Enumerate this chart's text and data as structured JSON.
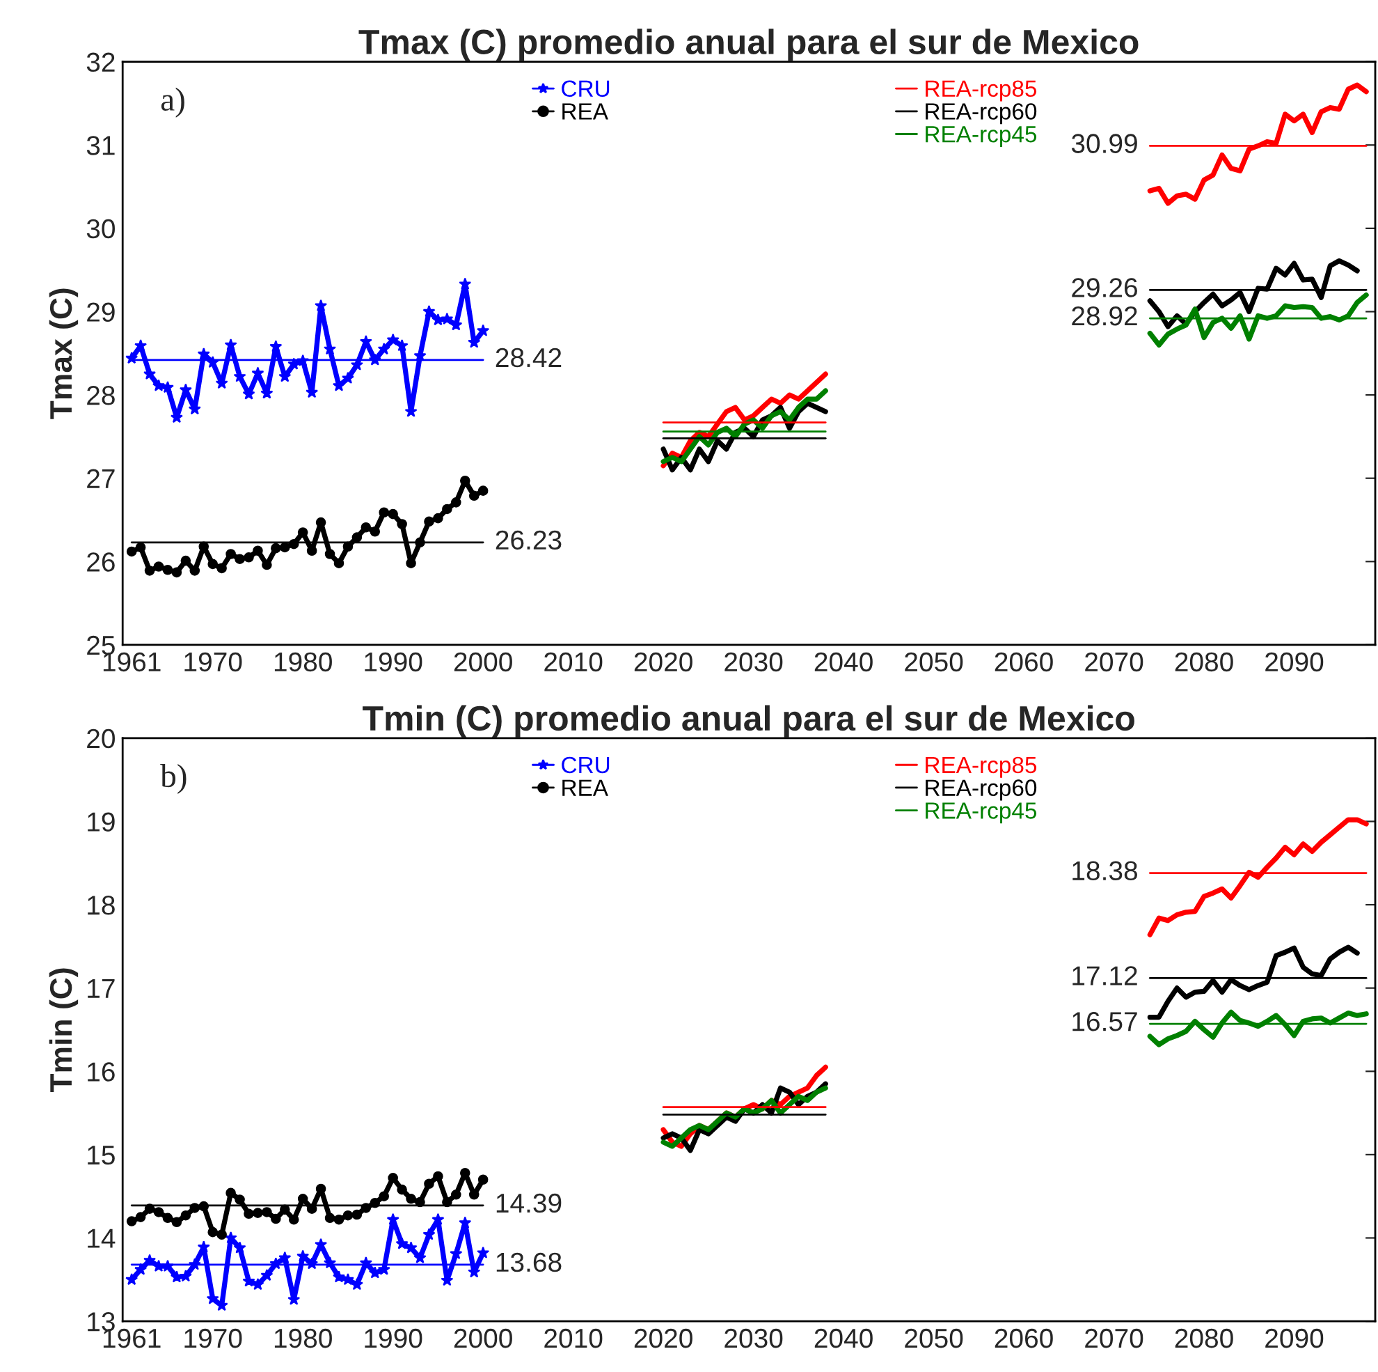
{
  "chart_data": [
    {
      "type": "line",
      "title": "Tmax (C) promedio anual para el sur de Mexico",
      "ylabel": "Tmax (C)",
      "xlim": [
        1960,
        2099
      ],
      "xticks": [
        1961,
        1970,
        1980,
        1990,
        2000,
        2010,
        2020,
        2030,
        2040,
        2050,
        2060,
        2070,
        2080,
        2090
      ],
      "ylim": [
        25,
        32
      ],
      "yticks": [
        25,
        26,
        27,
        28,
        29,
        30,
        31,
        32
      ],
      "legend": "top",
      "annotations": [
        "a)"
      ],
      "series": [
        {
          "name": "CRU",
          "color": "#0000ff",
          "marker": "star",
          "x": [
            1961,
            1962,
            1963,
            1964,
            1965,
            1966,
            1967,
            1968,
            1969,
            1970,
            1971,
            1972,
            1973,
            1974,
            1975,
            1976,
            1977,
            1978,
            1979,
            1980,
            1981,
            1982,
            1983,
            1984,
            1985,
            1986,
            1987,
            1988,
            1989,
            1990,
            1991,
            1992,
            1993,
            1994,
            1995,
            1996,
            1997,
            1998,
            1999,
            2000
          ],
          "values": [
            28.44,
            28.59,
            28.25,
            28.11,
            28.09,
            27.73,
            28.06,
            27.83,
            28.49,
            28.39,
            28.14,
            28.6,
            28.22,
            28.01,
            28.26,
            28.02,
            28.58,
            28.22,
            28.37,
            28.41,
            28.03,
            29.07,
            28.55,
            28.11,
            28.2,
            28.36,
            28.64,
            28.42,
            28.55,
            28.66,
            28.59,
            27.8,
            28.47,
            29.0,
            28.9,
            28.91,
            28.84,
            29.33,
            28.63,
            28.77
          ]
        },
        {
          "name": "REA",
          "color": "#000000",
          "marker": "circle",
          "x": [
            1961,
            1962,
            1963,
            1964,
            1965,
            1966,
            1967,
            1968,
            1969,
            1970,
            1971,
            1972,
            1973,
            1974,
            1975,
            1976,
            1977,
            1978,
            1979,
            1980,
            1981,
            1982,
            1983,
            1984,
            1985,
            1986,
            1987,
            1988,
            1989,
            1990,
            1991,
            1992,
            1993,
            1994,
            1995,
            1996,
            1997,
            1998,
            1999,
            2000
          ],
          "values": [
            26.12,
            26.17,
            25.89,
            25.94,
            25.9,
            25.87,
            26.01,
            25.89,
            26.18,
            25.97,
            25.92,
            26.09,
            26.03,
            26.05,
            26.13,
            25.96,
            26.16,
            26.17,
            26.21,
            26.35,
            26.13,
            26.47,
            26.09,
            25.98,
            26.18,
            26.29,
            26.41,
            26.36,
            26.59,
            26.57,
            26.45,
            25.98,
            26.23,
            26.48,
            26.52,
            26.63,
            26.71,
            26.97,
            26.79,
            26.85
          ]
        },
        {
          "name": "REA-rcp85",
          "color": "#ff0000",
          "x": [
            2020,
            2021,
            2022,
            2023,
            2024,
            2025,
            2026,
            2027,
            2028,
            2029,
            2030,
            2031,
            2032,
            2033,
            2034,
            2035,
            2036,
            2037,
            2038,
            null,
            2074,
            2075,
            2076,
            2077,
            2078,
            2079,
            2080,
            2081,
            2082,
            2083,
            2084,
            2085,
            2086,
            2087,
            2088,
            2089,
            2090,
            2091,
            2092,
            2093,
            2094,
            2095,
            2096,
            2097,
            2098
          ],
          "values": [
            27.15,
            27.3,
            27.25,
            27.45,
            27.55,
            27.5,
            27.65,
            27.8,
            27.85,
            27.7,
            27.75,
            27.85,
            27.95,
            27.9,
            28.0,
            27.95,
            28.05,
            28.15,
            28.25,
            null,
            30.45,
            30.48,
            30.3,
            30.39,
            30.41,
            30.35,
            30.58,
            30.64,
            30.88,
            30.72,
            30.69,
            30.95,
            30.99,
            31.04,
            31.02,
            31.37,
            31.29,
            31.37,
            31.15,
            31.4,
            31.45,
            31.43,
            31.67,
            31.72,
            31.64
          ]
        },
        {
          "name": "REA-rcp60",
          "color": "#000000",
          "x": [
            2020,
            2021,
            2022,
            2023,
            2024,
            2025,
            2026,
            2027,
            2028,
            2029,
            2030,
            2031,
            2032,
            2033,
            2034,
            2035,
            2036,
            2037,
            2038,
            null,
            2074,
            2075,
            2076,
            2077,
            2078,
            2079,
            2080,
            2081,
            2082,
            2083,
            2084,
            2085,
            2086,
            2087,
            2088,
            2089,
            2090,
            2091,
            2092,
            2093,
            2094,
            2095,
            2096,
            2097
          ],
          "values": [
            27.35,
            27.1,
            27.25,
            27.1,
            27.35,
            27.2,
            27.45,
            27.35,
            27.55,
            27.6,
            27.5,
            27.7,
            27.75,
            27.85,
            27.6,
            27.8,
            27.9,
            27.85,
            27.8,
            null,
            29.13,
            29.0,
            28.82,
            28.95,
            28.85,
            29.0,
            29.11,
            29.21,
            29.07,
            29.14,
            29.23,
            29.0,
            29.28,
            29.27,
            29.52,
            29.44,
            29.58,
            29.38,
            29.39,
            29.17,
            29.55,
            29.61,
            29.56,
            29.49
          ]
        },
        {
          "name": "REA-rcp45",
          "color": "#008000",
          "x": [
            2020,
            2021,
            2022,
            2023,
            2024,
            2025,
            2026,
            2027,
            2028,
            2029,
            2030,
            2031,
            2032,
            2033,
            2034,
            2035,
            2036,
            2037,
            2038,
            null,
            2074,
            2075,
            2076,
            2077,
            2078,
            2079,
            2080,
            2081,
            2082,
            2083,
            2084,
            2085,
            2086,
            2087,
            2088,
            2089,
            2090,
            2091,
            2092,
            2093,
            2094,
            2095,
            2096,
            2097,
            2098
          ],
          "values": [
            27.2,
            27.25,
            27.2,
            27.35,
            27.5,
            27.4,
            27.55,
            27.6,
            27.5,
            27.65,
            27.7,
            27.6,
            27.75,
            27.8,
            27.7,
            27.85,
            27.95,
            27.95,
            28.05,
            null,
            28.74,
            28.6,
            28.73,
            28.79,
            28.84,
            29.03,
            28.69,
            28.87,
            28.92,
            28.8,
            28.95,
            28.67,
            28.95,
            28.92,
            28.95,
            29.07,
            29.05,
            29.06,
            29.05,
            28.92,
            28.94,
            28.9,
            28.95,
            29.11,
            29.2
          ]
        },
        {
          "color": "#0000ff",
          "x": [
            1961,
            2000
          ],
          "values": [
            28.42,
            28.42
          ],
          "value_labels": [
            null,
            "28.42"
          ]
        },
        {
          "color": "#000000",
          "x": [
            1961,
            2000
          ],
          "values": [
            26.23,
            26.23
          ],
          "value_labels": [
            null,
            "26.23"
          ]
        },
        {
          "color": "#ff0000",
          "x": [
            2020,
            2038
          ],
          "values": [
            27.67,
            27.67
          ]
        },
        {
          "color": "#008000",
          "x": [
            2020,
            2038
          ],
          "values": [
            27.56,
            27.56
          ]
        },
        {
          "color": "#000000",
          "x": [
            2020,
            2038
          ],
          "values": [
            27.48,
            27.48
          ]
        },
        {
          "color": "#ff0000",
          "x": [
            2074,
            2098
          ],
          "values": [
            30.99,
            30.99
          ],
          "value_labels": [
            "30.99",
            null
          ]
        },
        {
          "color": "#000000",
          "x": [
            2074,
            2098
          ],
          "values": [
            29.26,
            29.26
          ],
          "value_labels": [
            "29.26",
            null
          ]
        },
        {
          "color": "#008000",
          "x": [
            2074,
            2098
          ],
          "values": [
            28.92,
            28.92
          ],
          "value_labels": [
            "28.92",
            null
          ]
        }
      ]
    },
    {
      "type": "line",
      "title": "Tmin (C) promedio anual para el sur de Mexico",
      "ylabel": "Tmin (C)",
      "xlim": [
        1960,
        2099
      ],
      "xticks": [
        1961,
        1970,
        1980,
        1990,
        2000,
        2010,
        2020,
        2030,
        2040,
        2050,
        2060,
        2070,
        2080,
        2090
      ],
      "ylim": [
        13,
        20
      ],
      "yticks": [
        13,
        14,
        15,
        16,
        17,
        18,
        19,
        20
      ],
      "legend": "top",
      "annotations": [
        "b)"
      ],
      "series": [
        {
          "name": "CRU",
          "color": "#0000ff",
          "marker": "star",
          "x": [
            1961,
            1962,
            1963,
            1964,
            1965,
            1966,
            1967,
            1968,
            1969,
            1970,
            1971,
            1972,
            1973,
            1974,
            1975,
            1976,
            1977,
            1978,
            1979,
            1980,
            1981,
            1982,
            1983,
            1984,
            1985,
            1986,
            1987,
            1988,
            1989,
            1990,
            1991,
            1992,
            1993,
            1994,
            1995,
            1996,
            1997,
            1998,
            1999,
            2000
          ],
          "values": [
            13.5,
            13.62,
            13.73,
            13.66,
            13.66,
            13.53,
            13.54,
            13.68,
            13.89,
            13.27,
            13.19,
            14.0,
            13.88,
            13.48,
            13.44,
            13.55,
            13.69,
            13.76,
            13.26,
            13.78,
            13.69,
            13.92,
            13.7,
            13.53,
            13.5,
            13.44,
            13.7,
            13.58,
            13.62,
            14.22,
            13.93,
            13.88,
            13.76,
            14.04,
            14.22,
            13.49,
            13.81,
            14.18,
            13.59,
            13.82
          ]
        },
        {
          "name": "REA",
          "color": "#000000",
          "marker": "circle",
          "x": [
            1961,
            1962,
            1963,
            1964,
            1965,
            1966,
            1967,
            1968,
            1969,
            1970,
            1971,
            1972,
            1973,
            1974,
            1975,
            1976,
            1977,
            1978,
            1979,
            1980,
            1981,
            1982,
            1983,
            1984,
            1985,
            1986,
            1987,
            1988,
            1989,
            1990,
            1991,
            1992,
            1993,
            1994,
            1995,
            1996,
            1997,
            1998,
            1999,
            2000
          ],
          "values": [
            14.2,
            14.25,
            14.35,
            14.31,
            14.24,
            14.19,
            14.27,
            14.36,
            14.38,
            14.07,
            14.04,
            14.54,
            14.46,
            14.29,
            14.3,
            14.31,
            14.23,
            14.34,
            14.22,
            14.47,
            14.35,
            14.59,
            14.24,
            14.22,
            14.27,
            14.28,
            14.36,
            14.42,
            14.5,
            14.72,
            14.58,
            14.47,
            14.43,
            14.65,
            14.74,
            14.43,
            14.52,
            14.78,
            14.52,
            14.7
          ]
        },
        {
          "name": "REA-rcp85",
          "color": "#ff0000",
          "x": [
            2020,
            2021,
            2022,
            2023,
            2024,
            2025,
            2026,
            2027,
            2028,
            2029,
            2030,
            2031,
            2032,
            2033,
            2034,
            2035,
            2036,
            2037,
            2038,
            null,
            2074,
            2075,
            2076,
            2077,
            2078,
            2079,
            2080,
            2081,
            2082,
            2083,
            2084,
            2085,
            2086,
            2087,
            2088,
            2089,
            2090,
            2091,
            2092,
            2093,
            2094,
            2095,
            2096,
            2097,
            2098
          ],
          "values": [
            15.3,
            15.15,
            15.1,
            15.25,
            15.35,
            15.3,
            15.4,
            15.5,
            15.45,
            15.55,
            15.6,
            15.55,
            15.65,
            15.6,
            15.7,
            15.75,
            15.8,
            15.95,
            16.05,
            null,
            17.64,
            17.84,
            17.81,
            17.88,
            17.91,
            17.92,
            18.1,
            18.14,
            18.19,
            18.08,
            18.23,
            18.39,
            18.33,
            18.45,
            18.56,
            18.69,
            18.6,
            18.73,
            18.64,
            18.75,
            18.84,
            18.93,
            19.02,
            19.02,
            18.97
          ]
        },
        {
          "name": "REA-rcp60",
          "color": "#000000",
          "x": [
            2020,
            2021,
            2022,
            2023,
            2024,
            2025,
            2026,
            2027,
            2028,
            2029,
            2030,
            2031,
            2032,
            2033,
            2034,
            2035,
            2036,
            2037,
            2038,
            null,
            2074,
            2075,
            2076,
            2077,
            2078,
            2079,
            2080,
            2081,
            2082,
            2083,
            2084,
            2085,
            2086,
            2087,
            2088,
            2089,
            2090,
            2091,
            2092,
            2093,
            2094,
            2095,
            2096,
            2097
          ],
          "values": [
            15.2,
            15.25,
            15.2,
            15.05,
            15.3,
            15.25,
            15.35,
            15.45,
            15.4,
            15.55,
            15.5,
            15.6,
            15.5,
            15.8,
            15.75,
            15.6,
            15.7,
            15.75,
            15.85,
            null,
            16.65,
            16.65,
            16.84,
            17.0,
            16.89,
            16.95,
            16.96,
            17.09,
            16.95,
            17.1,
            17.03,
            16.98,
            17.03,
            17.07,
            17.39,
            17.43,
            17.48,
            17.25,
            17.17,
            17.15,
            17.35,
            17.43,
            17.49,
            17.42
          ]
        },
        {
          "name": "REA-rcp45",
          "color": "#008000",
          "x": [
            2020,
            2021,
            2022,
            2023,
            2024,
            2025,
            2026,
            2027,
            2028,
            2029,
            2030,
            2031,
            2032,
            2033,
            2034,
            2035,
            2036,
            2037,
            2038,
            null,
            2074,
            2075,
            2076,
            2077,
            2078,
            2079,
            2080,
            2081,
            2082,
            2083,
            2084,
            2085,
            2086,
            2087,
            2088,
            2089,
            2090,
            2091,
            2092,
            2093,
            2094,
            2095,
            2096,
            2097,
            2098
          ],
          "values": [
            15.15,
            15.1,
            15.2,
            15.3,
            15.35,
            15.3,
            15.4,
            15.5,
            15.45,
            15.55,
            15.5,
            15.55,
            15.65,
            15.5,
            15.6,
            15.7,
            15.65,
            15.75,
            15.8,
            null,
            16.42,
            16.32,
            16.39,
            16.43,
            16.48,
            16.6,
            16.5,
            16.41,
            16.58,
            16.71,
            16.61,
            16.58,
            16.54,
            16.6,
            16.67,
            16.56,
            16.43,
            16.6,
            16.63,
            16.64,
            16.58,
            16.64,
            16.7,
            16.67,
            16.69
          ]
        },
        {
          "color": "#000000",
          "x": [
            1961,
            2000
          ],
          "values": [
            14.39,
            14.39
          ],
          "value_labels": [
            null,
            "14.39"
          ]
        },
        {
          "color": "#0000ff",
          "x": [
            1961,
            2000
          ],
          "values": [
            13.68,
            13.68
          ],
          "value_labels": [
            null,
            "13.68"
          ]
        },
        {
          "color": "#ff0000",
          "x": [
            2020,
            2038
          ],
          "values": [
            15.57,
            15.57
          ]
        },
        {
          "color": "#000000",
          "x": [
            2020,
            2038
          ],
          "values": [
            15.48,
            15.48
          ]
        },
        {
          "color": "#ff0000",
          "x": [
            2074,
            2098
          ],
          "values": [
            18.38,
            18.38
          ],
          "value_labels": [
            "18.38",
            null
          ]
        },
        {
          "color": "#000000",
          "x": [
            2074,
            2098
          ],
          "values": [
            17.12,
            17.12
          ],
          "value_labels": [
            "17.12",
            null
          ]
        },
        {
          "color": "#008000",
          "x": [
            2074,
            2098
          ],
          "values": [
            16.57,
            16.57
          ],
          "value_labels": [
            "16.57",
            null
          ]
        }
      ]
    }
  ]
}
